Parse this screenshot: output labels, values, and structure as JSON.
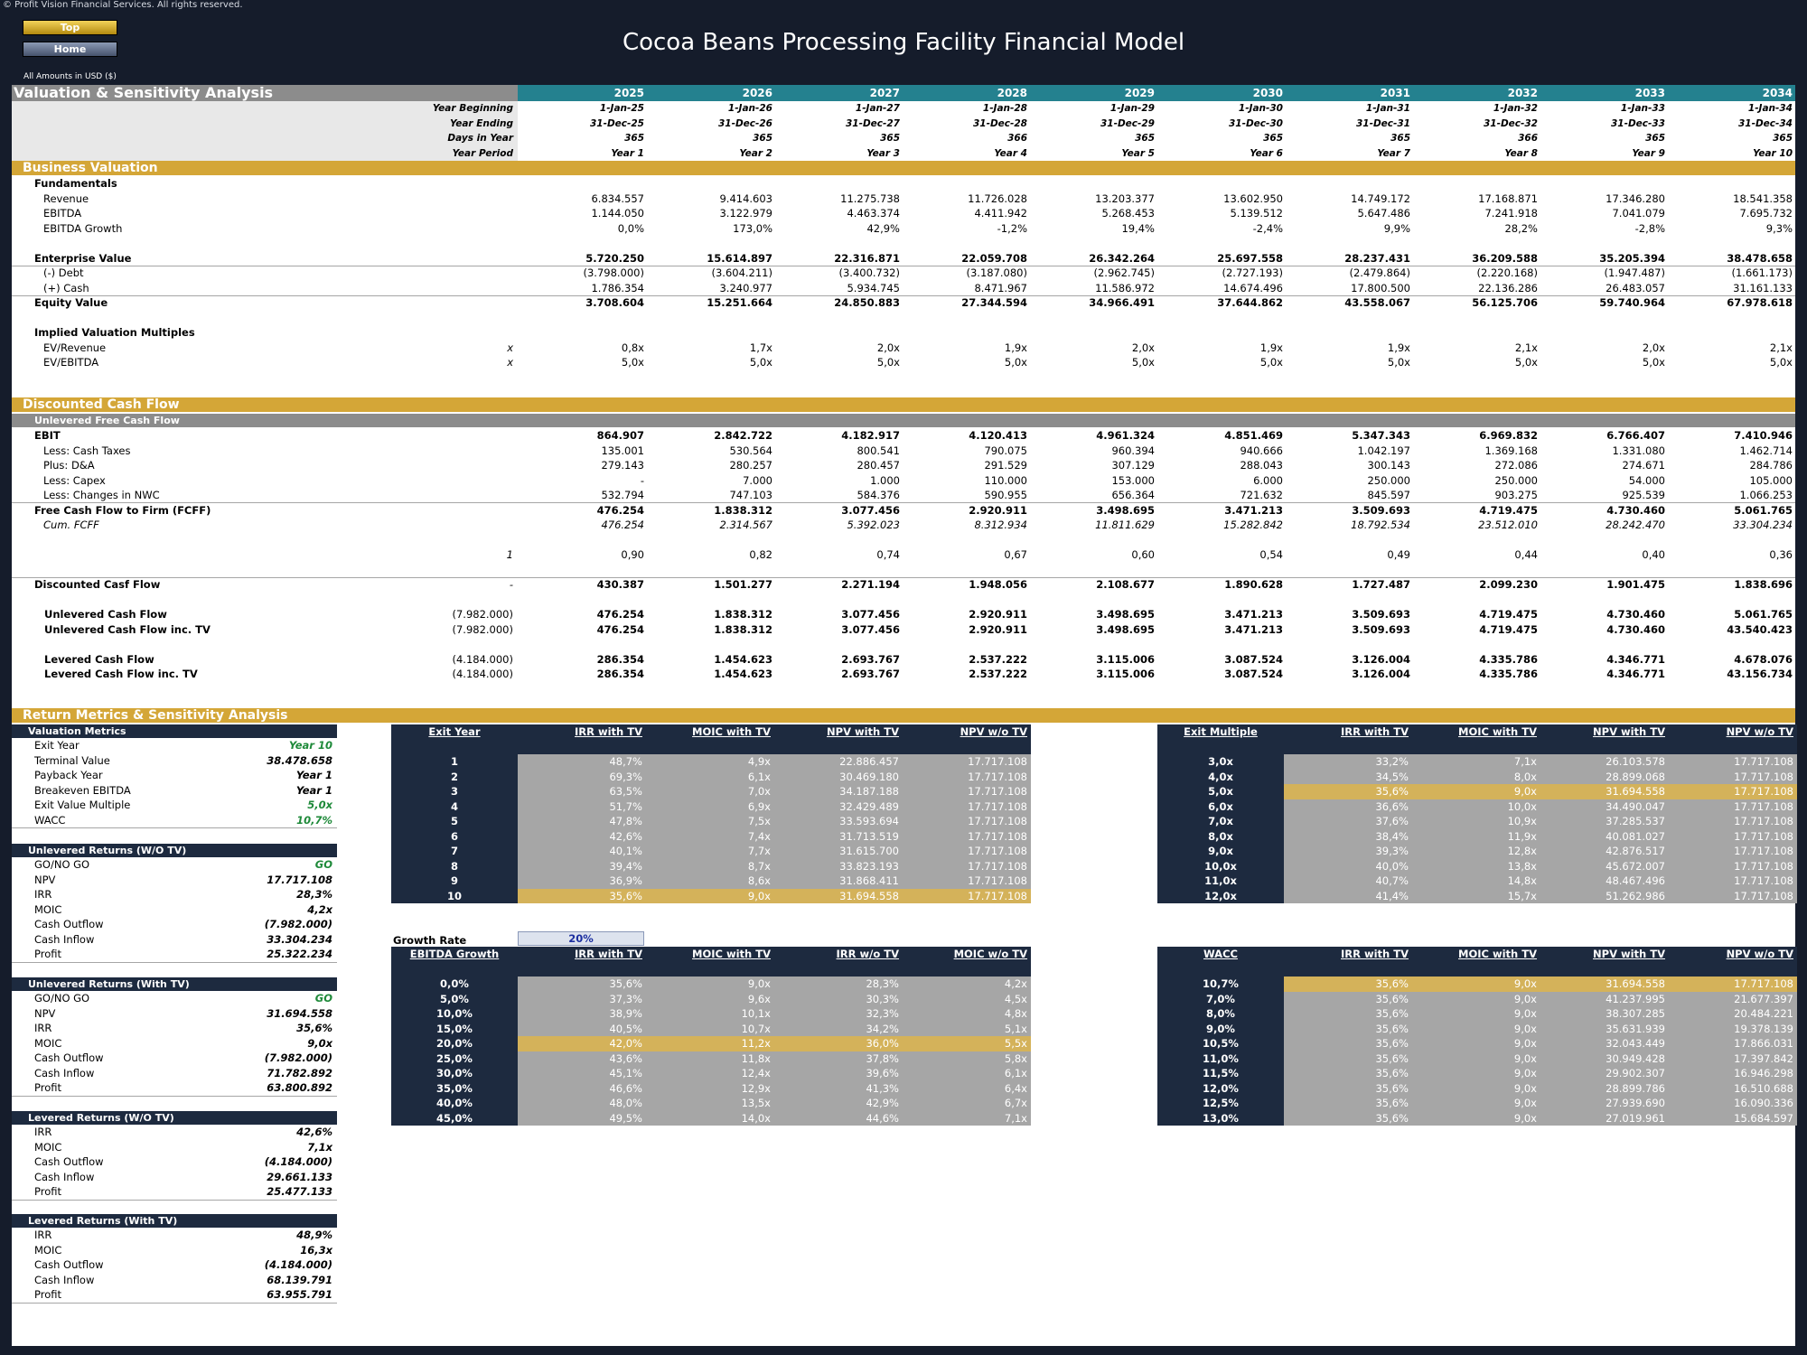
{
  "app": {
    "copyright": "© Profit Vision Financial Services. All rights reserved.",
    "title": "Cocoa Beans Processing Facility Financial Model",
    "top_label": "Top",
    "home_label": "Home",
    "amounts_note": "All Amounts in  USD ($)"
  },
  "years": [
    "2025",
    "2026",
    "2027",
    "2028",
    "2029",
    "2030",
    "2031",
    "2032",
    "2033",
    "2034"
  ],
  "section_title": "Valuation & Sensitivity Analysis",
  "header_rows": [
    {
      "label": "Year Beginning",
      "values": [
        "1-Jan-25",
        "1-Jan-26",
        "1-Jan-27",
        "1-Jan-28",
        "1-Jan-29",
        "1-Jan-30",
        "1-Jan-31",
        "1-Jan-32",
        "1-Jan-33",
        "1-Jan-34"
      ]
    },
    {
      "label": "Year Ending",
      "values": [
        "31-Dec-25",
        "31-Dec-26",
        "31-Dec-27",
        "31-Dec-28",
        "31-Dec-29",
        "31-Dec-30",
        "31-Dec-31",
        "31-Dec-32",
        "31-Dec-33",
        "31-Dec-34"
      ]
    },
    {
      "label": "Days in Year",
      "values": [
        "365",
        "365",
        "365",
        "366",
        "365",
        "365",
        "365",
        "366",
        "365",
        "365"
      ]
    },
    {
      "label": "Year Period",
      "values": [
        "Year 1",
        "Year 2",
        "Year 3",
        "Year 4",
        "Year 5",
        "Year 6",
        "Year 7",
        "Year 8",
        "Year 9",
        "Year 10"
      ]
    }
  ],
  "bands": {
    "business_valuation": "Business Valuation",
    "dcf": "Discounted Cash Flow",
    "ufcf": "Unlevered Free Cash Flow",
    "returns": "Return Metrics & Sensitivity Analysis"
  },
  "bv_rows": [
    {
      "label": "Fundamentals",
      "style": "b",
      "col": "",
      "values": []
    },
    {
      "label": "Revenue",
      "style": "ind",
      "col": "",
      "values": [
        "6.834.557",
        "9.414.603",
        "11.275.738",
        "11.726.028",
        "13.203.377",
        "13.602.950",
        "14.749.172",
        "17.168.871",
        "17.346.280",
        "18.541.358"
      ]
    },
    {
      "label": "EBITDA",
      "style": "ind",
      "col": "",
      "values": [
        "1.144.050",
        "3.122.979",
        "4.463.374",
        "4.411.942",
        "5.268.453",
        "5.139.512",
        "5.647.486",
        "7.241.918",
        "7.041.079",
        "7.695.732"
      ]
    },
    {
      "label": "EBITDA Growth",
      "style": "ind",
      "col": "",
      "values": [
        "0,0%",
        "173,0%",
        "42,9%",
        "-1,2%",
        "19,4%",
        "-2,4%",
        "9,9%",
        "28,2%",
        "-2,8%",
        "9,3%"
      ]
    },
    {
      "label": "",
      "style": "",
      "col": "",
      "values": []
    },
    {
      "label": "Enterprise Value",
      "style": "b",
      "col": "",
      "values": [
        "5.720.250",
        "15.614.897",
        "22.316.871",
        "22.059.708",
        "26.342.264",
        "25.697.558",
        "28.237.431",
        "36.209.588",
        "35.205.394",
        "38.478.658"
      ]
    },
    {
      "label": "(-) Debt",
      "style": "ind",
      "col": "",
      "values": [
        "(3.798.000)",
        "(3.604.211)",
        "(3.400.732)",
        "(3.187.080)",
        "(2.962.745)",
        "(2.727.193)",
        "(2.479.864)",
        "(2.220.168)",
        "(1.947.487)",
        "(1.661.173)"
      ]
    },
    {
      "label": "(+) Cash",
      "style": "ind",
      "col": "",
      "values": [
        "1.786.354",
        "3.240.977",
        "5.934.745",
        "8.471.967",
        "11.586.972",
        "14.674.496",
        "17.800.500",
        "22.136.286",
        "26.483.057",
        "31.161.133"
      ]
    },
    {
      "label": "Equity Value",
      "style": "b",
      "col": "",
      "values": [
        "3.708.604",
        "15.251.664",
        "24.850.883",
        "27.344.594",
        "34.966.491",
        "37.644.862",
        "43.558.067",
        "56.125.706",
        "59.740.964",
        "67.978.618"
      ]
    },
    {
      "label": "",
      "style": "",
      "col": "",
      "values": []
    },
    {
      "label": "Implied Valuation Multiples",
      "style": "b",
      "col": "",
      "values": []
    },
    {
      "label": "EV/Revenue",
      "style": "ind",
      "col": "x",
      "values": [
        "0,8x",
        "1,7x",
        "2,0x",
        "1,9x",
        "2,0x",
        "1,9x",
        "1,9x",
        "2,1x",
        "2,0x",
        "2,1x"
      ]
    },
    {
      "label": "EV/EBITDA",
      "style": "ind",
      "col": "x",
      "values": [
        "5,0x",
        "5,0x",
        "5,0x",
        "5,0x",
        "5,0x",
        "5,0x",
        "5,0x",
        "5,0x",
        "5,0x",
        "5,0x"
      ]
    }
  ],
  "dcf_rows": [
    {
      "label": "EBIT",
      "style": "b",
      "col": "",
      "values": [
        "864.907",
        "2.842.722",
        "4.182.917",
        "4.120.413",
        "4.961.324",
        "4.851.469",
        "5.347.343",
        "6.969.832",
        "6.766.407",
        "7.410.946"
      ]
    },
    {
      "label": "Less: Cash Taxes",
      "style": "ind",
      "col": "",
      "values": [
        "135.001",
        "530.564",
        "800.541",
        "790.075",
        "960.394",
        "940.666",
        "1.042.197",
        "1.369.168",
        "1.331.080",
        "1.462.714"
      ]
    },
    {
      "label": "Plus: D&A",
      "style": "ind",
      "col": "",
      "values": [
        "279.143",
        "280.257",
        "280.457",
        "291.529",
        "307.129",
        "288.043",
        "300.143",
        "272.086",
        "274.671",
        "284.786"
      ]
    },
    {
      "label": "Less: Capex",
      "style": "ind",
      "col": "",
      "values": [
        "-",
        "7.000",
        "1.000",
        "110.000",
        "153.000",
        "6.000",
        "250.000",
        "250.000",
        "54.000",
        "105.000"
      ]
    },
    {
      "label": "Less: Changes in NWC",
      "style": "ind",
      "col": "",
      "values": [
        "532.794",
        "747.103",
        "584.376",
        "590.955",
        "656.364",
        "721.632",
        "845.597",
        "903.275",
        "925.539",
        "1.066.253"
      ]
    },
    {
      "label": "Free Cash Flow to Firm (FCFF)",
      "style": "b",
      "col": "",
      "values": [
        "476.254",
        "1.838.312",
        "3.077.456",
        "2.920.911",
        "3.498.695",
        "3.471.213",
        "3.509.693",
        "4.719.475",
        "4.730.460",
        "5.061.765"
      ]
    },
    {
      "label": "Cum. FCFF",
      "style": "it",
      "col": "",
      "values": [
        "476.254",
        "2.314.567",
        "5.392.023",
        "8.312.934",
        "11.811.629",
        "15.282.842",
        "18.792.534",
        "23.512.010",
        "28.242.470",
        "33.304.234"
      ]
    },
    {
      "label": "",
      "style": "",
      "col": "",
      "values": []
    },
    {
      "label": "",
      "style": "",
      "col": "1",
      "values": [
        "0,90",
        "0,82",
        "0,74",
        "0,67",
        "0,60",
        "0,54",
        "0,49",
        "0,44",
        "0,40",
        "0,36"
      ]
    },
    {
      "label": "",
      "style": "",
      "col": "",
      "values": []
    },
    {
      "label": "Discounted Casf Flow",
      "style": "b",
      "col": "-",
      "values": [
        "430.387",
        "1.501.277",
        "2.271.194",
        "1.948.056",
        "2.108.677",
        "1.890.628",
        "1.727.487",
        "2.099.230",
        "1.901.475",
        "1.838.696"
      ]
    },
    {
      "label": "",
      "style": "",
      "col": "",
      "values": []
    },
    {
      "label": "Unlevered Cash Flow",
      "style": "b2",
      "col": "(7.982.000)",
      "values": [
        "476.254",
        "1.838.312",
        "3.077.456",
        "2.920.911",
        "3.498.695",
        "3.471.213",
        "3.509.693",
        "4.719.475",
        "4.730.460",
        "5.061.765"
      ]
    },
    {
      "label": "Unlevered Cash Flow inc. TV",
      "style": "b2",
      "col": "(7.982.000)",
      "values": [
        "476.254",
        "1.838.312",
        "3.077.456",
        "2.920.911",
        "3.498.695",
        "3.471.213",
        "3.509.693",
        "4.719.475",
        "4.730.460",
        "43.540.423"
      ]
    },
    {
      "label": "",
      "style": "",
      "col": "",
      "values": []
    },
    {
      "label": "Levered Cash Flow",
      "style": "b2",
      "col": "(4.184.000)",
      "values": [
        "286.354",
        "1.454.623",
        "2.693.767",
        "2.537.222",
        "3.115.006",
        "3.087.524",
        "3.126.004",
        "4.335.786",
        "4.346.771",
        "4.678.076"
      ]
    },
    {
      "label": "Levered Cash Flow inc. TV",
      "style": "b2",
      "col": "(4.184.000)",
      "values": [
        "286.354",
        "1.454.623",
        "2.693.767",
        "2.537.222",
        "3.115.006",
        "3.087.524",
        "3.126.004",
        "4.335.786",
        "4.346.771",
        "43.156.734"
      ]
    }
  ],
  "panels": [
    {
      "title": "Valuation Metrics",
      "rows": [
        [
          "Exit Year",
          "Year 10",
          "g"
        ],
        [
          "Terminal Value",
          "38.478.658",
          ""
        ],
        [
          "Payback Year",
          "Year 1",
          ""
        ],
        [
          "Breakeven EBITDA",
          "Year 1",
          ""
        ],
        [
          "Exit Value Multiple",
          "5,0x",
          "g"
        ],
        [
          "WACC",
          "10,7%",
          "g"
        ]
      ]
    },
    {
      "title": "Unlevered Returns (W/O TV)",
      "rows": [
        [
          "GO/NO GO",
          "GO",
          "g"
        ],
        [
          "NPV",
          "17.717.108",
          ""
        ],
        [
          "IRR",
          "28,3%",
          ""
        ],
        [
          "MOIC",
          "4,2x",
          ""
        ],
        [
          "Cash Outflow",
          "(7.982.000)",
          ""
        ],
        [
          "Cash Inflow",
          "33.304.234",
          ""
        ],
        [
          "Profit",
          "25.322.234",
          ""
        ]
      ]
    },
    {
      "title": "Unlevered Returns (With TV)",
      "rows": [
        [
          "GO/NO GO",
          "GO",
          "g"
        ],
        [
          "NPV",
          "31.694.558",
          ""
        ],
        [
          "IRR",
          "35,6%",
          ""
        ],
        [
          "MOIC",
          "9,0x",
          ""
        ],
        [
          "Cash Outflow",
          "(7.982.000)",
          ""
        ],
        [
          "Cash Inflow",
          "71.782.892",
          ""
        ],
        [
          "Profit",
          "63.800.892",
          ""
        ]
      ]
    },
    {
      "title": "Levered Returns (W/O TV)",
      "rows": [
        [
          "IRR",
          "42,6%",
          ""
        ],
        [
          "MOIC",
          "7,1x",
          ""
        ],
        [
          "Cash Outflow",
          "(4.184.000)",
          ""
        ],
        [
          "Cash Inflow",
          "29.661.133",
          ""
        ],
        [
          "Profit",
          "25.477.133",
          ""
        ]
      ]
    },
    {
      "title": "Levered Returns (With TV)",
      "rows": [
        [
          "IRR",
          "48,9%",
          ""
        ],
        [
          "MOIC",
          "16,3x",
          ""
        ],
        [
          "Cash Outflow",
          "(4.184.000)",
          ""
        ],
        [
          "Cash Inflow",
          "68.139.791",
          ""
        ],
        [
          "Profit",
          "63.955.791",
          ""
        ]
      ]
    }
  ],
  "growth_rate": {
    "label": "Growth Rate",
    "value": "20%"
  },
  "tables": {
    "exit_year": {
      "headers": [
        "Exit Year",
        "IRR with TV",
        "MOIC with TV",
        "NPV with TV",
        "NPV w/o TV"
      ],
      "highlight": 9,
      "rows": [
        [
          "1",
          "48,7%",
          "4,9x",
          "22.886.457",
          "17.717.108"
        ],
        [
          "2",
          "69,3%",
          "6,1x",
          "30.469.180",
          "17.717.108"
        ],
        [
          "3",
          "63,5%",
          "7,0x",
          "34.187.188",
          "17.717.108"
        ],
        [
          "4",
          "51,7%",
          "6,9x",
          "32.429.489",
          "17.717.108"
        ],
        [
          "5",
          "47,8%",
          "7,5x",
          "33.593.694",
          "17.717.108"
        ],
        [
          "6",
          "42,6%",
          "7,4x",
          "31.713.519",
          "17.717.108"
        ],
        [
          "7",
          "40,1%",
          "7,7x",
          "31.615.700",
          "17.717.108"
        ],
        [
          "8",
          "39,4%",
          "8,7x",
          "33.823.193",
          "17.717.108"
        ],
        [
          "9",
          "36,9%",
          "8,6x",
          "31.868.411",
          "17.717.108"
        ],
        [
          "10",
          "35,6%",
          "9,0x",
          "31.694.558",
          "17.717.108"
        ]
      ]
    },
    "exit_multiple": {
      "headers": [
        "Exit Multiple",
        "IRR with TV",
        "MOIC with TV",
        "NPV with TV",
        "NPV w/o TV"
      ],
      "highlight": 2,
      "rows": [
        [
          "3,0x",
          "33,2%",
          "7,1x",
          "26.103.578",
          "17.717.108"
        ],
        [
          "4,0x",
          "34,5%",
          "8,0x",
          "28.899.068",
          "17.717.108"
        ],
        [
          "5,0x",
          "35,6%",
          "9,0x",
          "31.694.558",
          "17.717.108"
        ],
        [
          "6,0x",
          "36,6%",
          "10,0x",
          "34.490.047",
          "17.717.108"
        ],
        [
          "7,0x",
          "37,6%",
          "10,9x",
          "37.285.537",
          "17.717.108"
        ],
        [
          "8,0x",
          "38,4%",
          "11,9x",
          "40.081.027",
          "17.717.108"
        ],
        [
          "9,0x",
          "39,3%",
          "12,8x",
          "42.876.517",
          "17.717.108"
        ],
        [
          "10,0x",
          "40,0%",
          "13,8x",
          "45.672.007",
          "17.717.108"
        ],
        [
          "11,0x",
          "40,7%",
          "14,8x",
          "48.467.496",
          "17.717.108"
        ],
        [
          "12,0x",
          "41,4%",
          "15,7x",
          "51.262.986",
          "17.717.108"
        ]
      ]
    },
    "ebitda_growth": {
      "headers": [
        "EBITDA Growth",
        "IRR with TV",
        "MOIC with TV",
        "IRR w/o TV",
        "MOIC w/o TV"
      ],
      "highlight": 4,
      "rows": [
        [
          "0,0%",
          "35,6%",
          "9,0x",
          "28,3%",
          "4,2x"
        ],
        [
          "5,0%",
          "37,3%",
          "9,6x",
          "30,3%",
          "4,5x"
        ],
        [
          "10,0%",
          "38,9%",
          "10,1x",
          "32,3%",
          "4,8x"
        ],
        [
          "15,0%",
          "40,5%",
          "10,7x",
          "34,2%",
          "5,1x"
        ],
        [
          "20,0%",
          "42,0%",
          "11,2x",
          "36,0%",
          "5,5x"
        ],
        [
          "25,0%",
          "43,6%",
          "11,8x",
          "37,8%",
          "5,8x"
        ],
        [
          "30,0%",
          "45,1%",
          "12,4x",
          "39,6%",
          "6,1x"
        ],
        [
          "35,0%",
          "46,6%",
          "12,9x",
          "41,3%",
          "6,4x"
        ],
        [
          "40,0%",
          "48,0%",
          "13,5x",
          "42,9%",
          "6,7x"
        ],
        [
          "45,0%",
          "49,5%",
          "14,0x",
          "44,6%",
          "7,1x"
        ]
      ]
    },
    "wacc": {
      "headers": [
        "WACC",
        "IRR with TV",
        "MOIC with TV",
        "NPV with TV",
        "NPV w/o TV"
      ],
      "highlight": 0,
      "rows": [
        [
          "10,7%",
          "35,6%",
          "9,0x",
          "31.694.558",
          "17.717.108"
        ],
        [
          "7,0%",
          "35,6%",
          "9,0x",
          "41.237.995",
          "21.677.397"
        ],
        [
          "8,0%",
          "35,6%",
          "9,0x",
          "38.307.285",
          "20.484.221"
        ],
        [
          "9,0%",
          "35,6%",
          "9,0x",
          "35.631.939",
          "19.378.139"
        ],
        [
          "10,5%",
          "35,6%",
          "9,0x",
          "32.043.449",
          "17.866.031"
        ],
        [
          "11,0%",
          "35,6%",
          "9,0x",
          "30.949.428",
          "17.397.842"
        ],
        [
          "11,5%",
          "35,6%",
          "9,0x",
          "29.902.307",
          "16.946.298"
        ],
        [
          "12,0%",
          "35,6%",
          "9,0x",
          "28.899.786",
          "16.510.688"
        ],
        [
          "12,5%",
          "35,6%",
          "9,0x",
          "27.939.690",
          "16.090.336"
        ],
        [
          "13,0%",
          "35,6%",
          "9,0x",
          "27.019.961",
          "15.684.597"
        ]
      ]
    }
  }
}
